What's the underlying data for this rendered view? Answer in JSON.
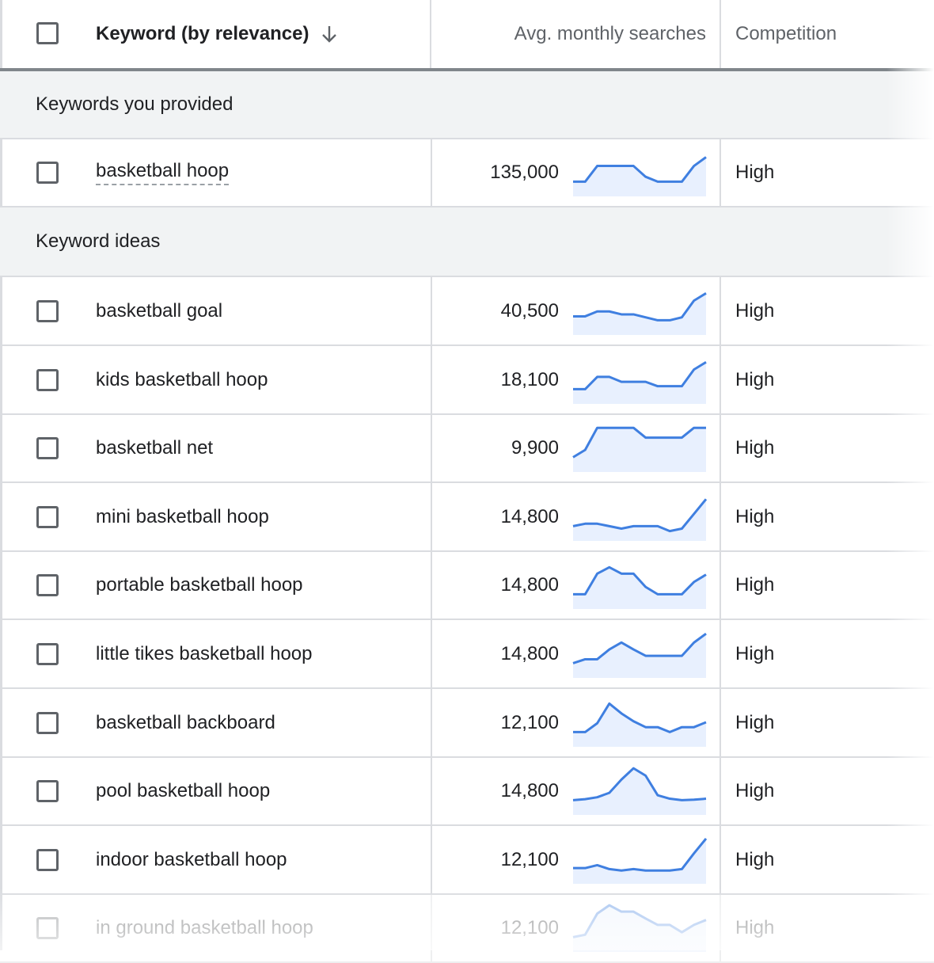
{
  "header": {
    "keyword_label": "Keyword (by relevance)",
    "sort_icon": "arrow-down-icon",
    "avg_label": "Avg. monthly searches",
    "competition_label": "Competition"
  },
  "sections": {
    "provided": "Keywords you provided",
    "ideas": "Keyword ideas"
  },
  "provided_rows": [
    {
      "keyword": "basketball hoop",
      "searches": "135,000",
      "competition": "High",
      "trend": [
        0.3,
        0.3,
        0.62,
        0.62,
        0.62,
        0.62,
        0.4,
        0.3,
        0.3,
        0.3,
        0.62,
        0.8
      ]
    }
  ],
  "idea_rows": [
    {
      "keyword": "basketball goal",
      "searches": "40,500",
      "competition": "High",
      "trend": [
        0.38,
        0.38,
        0.48,
        0.48,
        0.42,
        0.42,
        0.36,
        0.3,
        0.3,
        0.36,
        0.7,
        0.85
      ]
    },
    {
      "keyword": "kids basketball hoop",
      "searches": "18,100",
      "competition": "High",
      "trend": [
        0.3,
        0.3,
        0.55,
        0.55,
        0.45,
        0.45,
        0.45,
        0.36,
        0.36,
        0.36,
        0.7,
        0.85
      ]
    },
    {
      "keyword": "basketball net",
      "searches": "9,900",
      "competition": "High",
      "trend": [
        0.3,
        0.45,
        0.9,
        0.9,
        0.9,
        0.9,
        0.7,
        0.7,
        0.7,
        0.7,
        0.9,
        0.9
      ]
    },
    {
      "keyword": "mini basketball hoop",
      "searches": "14,800",
      "competition": "High",
      "trend": [
        0.3,
        0.35,
        0.35,
        0.3,
        0.25,
        0.3,
        0.3,
        0.3,
        0.2,
        0.25,
        0.55,
        0.85
      ]
    },
    {
      "keyword": "portable basketball hoop",
      "searches": "14,800",
      "competition": "High",
      "trend": [
        0.3,
        0.3,
        0.72,
        0.85,
        0.72,
        0.72,
        0.45,
        0.3,
        0.3,
        0.3,
        0.55,
        0.7
      ]
    },
    {
      "keyword": "little tikes basketball hoop",
      "searches": "14,800",
      "competition": "High",
      "trend": [
        0.3,
        0.38,
        0.38,
        0.58,
        0.72,
        0.58,
        0.45,
        0.45,
        0.45,
        0.45,
        0.72,
        0.9
      ]
    },
    {
      "keyword": "basketball backboard",
      "searches": "12,100",
      "competition": "High",
      "trend": [
        0.3,
        0.3,
        0.48,
        0.88,
        0.68,
        0.52,
        0.4,
        0.4,
        0.3,
        0.4,
        0.4,
        0.5
      ]
    },
    {
      "keyword": "pool basketball hoop",
      "searches": "14,800",
      "competition": "High",
      "trend": [
        0.3,
        0.32,
        0.36,
        0.45,
        0.72,
        0.95,
        0.8,
        0.4,
        0.33,
        0.3,
        0.31,
        0.33
      ]
    },
    {
      "keyword": "indoor basketball hoop",
      "searches": "12,100",
      "competition": "High",
      "trend": [
        0.32,
        0.32,
        0.38,
        0.3,
        0.27,
        0.3,
        0.27,
        0.27,
        0.27,
        0.3,
        0.62,
        0.92
      ]
    },
    {
      "keyword": "in ground basketball hoop",
      "searches": "12,100",
      "competition": "High",
      "trend": [
        0.3,
        0.35,
        0.78,
        0.95,
        0.82,
        0.82,
        0.68,
        0.55,
        0.55,
        0.4,
        0.55,
        0.65
      ]
    }
  ],
  "colors": {
    "trend_line": "#3f7fe0",
    "trend_fill": "#e8f0fe"
  }
}
